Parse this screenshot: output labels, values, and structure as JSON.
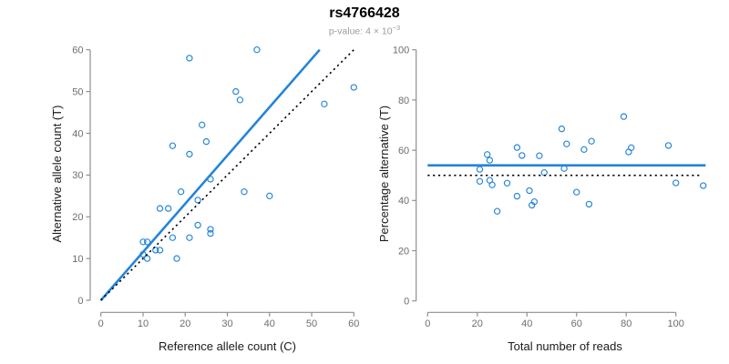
{
  "header": {
    "title": "rs4766428",
    "subtitle": {
      "text": "p-value: 4 × 10",
      "exponent": "−3"
    }
  },
  "colors": {
    "accent_blue": "#2484d9",
    "dashed_black": "#000000",
    "axis_gray": "#8f8f8f",
    "tick_text_gray": "#6e6e6e",
    "label_black": "#1a1a1a",
    "subtitle_gray": "#9b9b9b"
  },
  "chart_data": [
    {
      "type": "scatter",
      "panel": "left",
      "xlabel": "Reference allele count (C)",
      "ylabel": "Alternative allele count (T)",
      "xlim": [
        0,
        60
      ],
      "ylim": [
        0,
        60
      ],
      "xticks": [
        0,
        10,
        20,
        30,
        40,
        50,
        60
      ],
      "yticks": [
        0,
        10,
        20,
        30,
        40,
        50,
        60
      ],
      "grid": false,
      "point_color": "#2484d9",
      "points": [
        [
          21,
          58
        ],
        [
          37,
          60
        ],
        [
          60,
          51
        ],
        [
          32,
          50
        ],
        [
          33,
          48
        ],
        [
          53,
          47
        ],
        [
          24,
          42
        ],
        [
          25,
          38
        ],
        [
          17,
          37
        ],
        [
          21,
          35
        ],
        [
          26,
          29
        ],
        [
          19,
          26
        ],
        [
          34,
          26
        ],
        [
          40,
          25
        ],
        [
          23,
          24
        ],
        [
          14,
          22
        ],
        [
          16,
          22
        ],
        [
          23,
          18
        ],
        [
          26,
          17
        ],
        [
          26,
          16
        ],
        [
          17,
          15
        ],
        [
          21,
          15
        ],
        [
          10,
          14
        ],
        [
          11,
          14
        ],
        [
          13,
          12
        ],
        [
          14,
          12
        ],
        [
          10,
          11
        ],
        [
          11,
          10
        ],
        [
          18,
          10
        ]
      ],
      "lines": [
        {
          "name": "fit-line",
          "style": "solid",
          "color": "#2484d9",
          "points": [
            [
              0,
              0
            ],
            [
              51.9,
              60
            ]
          ]
        },
        {
          "name": "identity-line",
          "style": "dashed",
          "color": "#000000",
          "points": [
            [
              0,
              0
            ],
            [
              60,
              60
            ]
          ]
        }
      ]
    },
    {
      "type": "scatter",
      "panel": "right",
      "xlabel": "Total number of reads",
      "ylabel": "Percentage alternative (T)",
      "xlim": [
        0,
        112
      ],
      "ylim": [
        0,
        100
      ],
      "xticks": [
        0,
        20,
        40,
        60,
        80,
        100
      ],
      "yticks": [
        0,
        20,
        40,
        60,
        80,
        100
      ],
      "grid": false,
      "point_color": "#2484d9",
      "points": [
        [
          79,
          73.4
        ],
        [
          97,
          61.9
        ],
        [
          111,
          45.9
        ],
        [
          82,
          61.0
        ],
        [
          81,
          59.3
        ],
        [
          100,
          47.0
        ],
        [
          66,
          63.6
        ],
        [
          63,
          60.3
        ],
        [
          54,
          68.5
        ],
        [
          56,
          62.5
        ],
        [
          55,
          52.7
        ],
        [
          45,
          57.8
        ],
        [
          60,
          43.3
        ],
        [
          65,
          38.5
        ],
        [
          47,
          51.1
        ],
        [
          36,
          61.1
        ],
        [
          38,
          57.9
        ],
        [
          41,
          43.9
        ],
        [
          43,
          39.5
        ],
        [
          42,
          38.1
        ],
        [
          32,
          46.9
        ],
        [
          36,
          41.7
        ],
        [
          24,
          58.3
        ],
        [
          25,
          56.0
        ],
        [
          25,
          48.0
        ],
        [
          26,
          46.2
        ],
        [
          21,
          52.4
        ],
        [
          21,
          47.6
        ],
        [
          28,
          35.7
        ]
      ],
      "lines": [
        {
          "name": "mean-line",
          "style": "solid",
          "color": "#2484d9",
          "points": [
            [
              0,
              54
            ],
            [
              112,
              54
            ]
          ]
        },
        {
          "name": "expected-line",
          "style": "dashed",
          "color": "#000000",
          "points": [
            [
              0,
              50
            ],
            [
              110,
              50
            ]
          ]
        }
      ]
    }
  ]
}
